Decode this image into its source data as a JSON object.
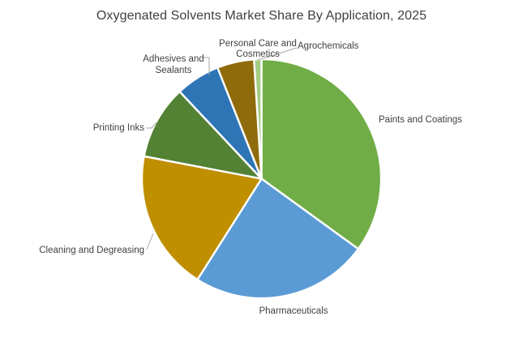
{
  "chart_data": {
    "type": "pie",
    "title": "Oxygenated Solvents Market Share By Application, 2025",
    "categories": [
      "Paints and Coatings",
      "Pharmaceuticals",
      "Cleaning and Degreasing",
      "Printing Inks",
      "Adhesives and Sealants",
      "Personal Care and Cosmetics",
      "Agrochemicals"
    ],
    "values": [
      35,
      24,
      19,
      10,
      6,
      5,
      1
    ],
    "unit": "percent",
    "colors": [
      "#70AD47",
      "#5B9BD5",
      "#BF8F00",
      "#548235",
      "#2E75B6",
      "#8F6B0B",
      "#A3CC84"
    ],
    "start_angle_deg": 0,
    "direction": "clockwise",
    "legend": "none",
    "label_style": "category names outside slices, some with leader lines",
    "slice_border_color": "#FFFFFF",
    "label_color": "#404040",
    "title_color": "#404040",
    "leader_line_color": "#A6A6A6",
    "background": "#FFFFFF"
  }
}
